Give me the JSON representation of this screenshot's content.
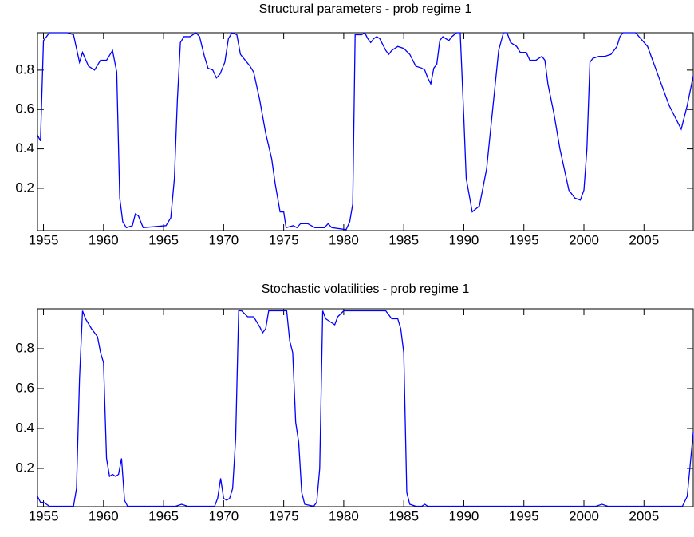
{
  "chart_data": [
    {
      "type": "line",
      "title": "Structural parameters - prob regime 1",
      "x": [
        1954.5,
        1954.75,
        1955,
        1955.5,
        1957,
        1957.5,
        1958,
        1958.25,
        1958.75,
        1959.25,
        1959.75,
        1960.25,
        1960.75,
        1961.1,
        1961.35,
        1961.6,
        1961.9,
        1962.4,
        1962.65,
        1962.9,
        1963.3,
        1965.2,
        1965.6,
        1965.9,
        1966.15,
        1966.4,
        1966.7,
        1967.2,
        1967.7,
        1968,
        1968.4,
        1968.7,
        1969.1,
        1969.4,
        1969.7,
        1970.1,
        1970.4,
        1970.7,
        1971.1,
        1971.4,
        1971.8,
        1972.2,
        1972.5,
        1973,
        1973.5,
        1974,
        1974.3,
        1974.7,
        1975,
        1975.2,
        1975.8,
        1976.1,
        1976.4,
        1977,
        1977.3,
        1977.6,
        1978.4,
        1978.7,
        1979,
        1980.2,
        1980.5,
        1980.75,
        1980.95,
        1981.5,
        1981.75,
        1982,
        1982.25,
        1982.5,
        1982.75,
        1983,
        1983.5,
        1983.75,
        1984,
        1984.5,
        1985,
        1985.5,
        1986,
        1986.5,
        1986.75,
        1987,
        1987.25,
        1987.5,
        1987.75,
        1988,
        1988.25,
        1988.5,
        1988.75,
        1989,
        1989.4,
        1989.7,
        1990,
        1990.2,
        1990.7,
        1991.3,
        1991.9,
        1992.4,
        1992.9,
        1993.3,
        1993.6,
        1993.9,
        1994.4,
        1994.7,
        1995.2,
        1995.5,
        1996,
        1996.5,
        1996.75,
        1997,
        1997.5,
        1998,
        1998.5,
        1998.75,
        1999.25,
        1999.7,
        2000,
        2000.25,
        2000.5,
        2000.75,
        2001.25,
        2001.75,
        2002.25,
        2002.75,
        2003,
        2003.25,
        2004.3,
        2005.3,
        2006.2,
        2007.1,
        2008.1,
        2008.6,
        2009.1
      ],
      "series": [
        {
          "color": "#0000ff",
          "values": [
            0.47,
            0.44,
            0.95,
            0.99,
            0.99,
            0.98,
            0.84,
            0.89,
            0.82,
            0.8,
            0.85,
            0.85,
            0.9,
            0.79,
            0.15,
            0.03,
            0,
            0.01,
            0.07,
            0.06,
            0,
            0.01,
            0.05,
            0.25,
            0.65,
            0.94,
            0.97,
            0.97,
            0.99,
            0.97,
            0.87,
            0.81,
            0.8,
            0.76,
            0.78,
            0.84,
            0.96,
            0.99,
            0.98,
            0.88,
            0.85,
            0.82,
            0.79,
            0.65,
            0.48,
            0.35,
            0.22,
            0.08,
            0.08,
            0,
            0.01,
            0,
            0.02,
            0.02,
            0.01,
            0,
            0,
            0.02,
            0,
            -0.01,
            0.03,
            0.12,
            0.98,
            0.98,
            0.99,
            0.96,
            0.94,
            0.96,
            0.97,
            0.96,
            0.9,
            0.88,
            0.9,
            0.92,
            0.91,
            0.88,
            0.82,
            0.81,
            0.8,
            0.76,
            0.73,
            0.81,
            0.83,
            0.95,
            0.97,
            0.96,
            0.95,
            0.97,
            0.99,
            0.99,
            0.56,
            0.25,
            0.08,
            0.11,
            0.3,
            0.6,
            0.9,
            0.99,
            0.99,
            0.94,
            0.92,
            0.89,
            0.89,
            0.85,
            0.85,
            0.87,
            0.85,
            0.73,
            0.58,
            0.4,
            0.26,
            0.19,
            0.15,
            0.14,
            0.19,
            0.4,
            0.84,
            0.86,
            0.87,
            0.87,
            0.88,
            0.92,
            0.97,
            0.99,
            0.99,
            0.92,
            0.77,
            0.62,
            0.5,
            0.62,
            0.77
          ]
        }
      ],
      "xlim": [
        1954.5,
        2009.1
      ],
      "ylim": [
        -0.015,
        0.99
      ],
      "xticks": [
        1955,
        1960,
        1965,
        1970,
        1975,
        1980,
        1985,
        1990,
        1995,
        2000,
        2005
      ],
      "yticks": [
        0.2,
        0.4,
        0.6,
        0.8
      ]
    },
    {
      "type": "line",
      "title": "Stochastic volatilities - prob regime 1",
      "x": [
        1954.5,
        1954.75,
        1955,
        1955.5,
        1957.5,
        1957.75,
        1958,
        1958.25,
        1958.5,
        1959,
        1959.5,
        1959.75,
        1960,
        1960.25,
        1960.5,
        1960.75,
        1961,
        1961.25,
        1961.5,
        1961.75,
        1962,
        1966,
        1966.5,
        1967,
        1969.25,
        1969.5,
        1969.75,
        1970,
        1970.25,
        1970.5,
        1970.75,
        1971,
        1971.25,
        1971.5,
        1972,
        1972.5,
        1973,
        1973.25,
        1973.5,
        1973.75,
        1975.25,
        1975.5,
        1975.75,
        1976,
        1976.25,
        1976.5,
        1976.75,
        1977.5,
        1977.75,
        1978,
        1978.25,
        1978.5,
        1979,
        1979.25,
        1979.5,
        1980,
        1983.5,
        1984,
        1984.5,
        1984.75,
        1985,
        1985.25,
        1985.5,
        1986,
        1986.5,
        1986.75,
        1987,
        2001,
        2001.5,
        2002,
        2008.2,
        2008.6,
        2009.1
      ],
      "series": [
        {
          "color": "#0000ff",
          "values": [
            0.06,
            0.03,
            0.03,
            0.01,
            0.01,
            0.1,
            0.65,
            0.99,
            0.95,
            0.9,
            0.86,
            0.78,
            0.73,
            0.25,
            0.16,
            0.17,
            0.16,
            0.17,
            0.25,
            0.04,
            0.01,
            0.01,
            0.02,
            0.01,
            0.01,
            0.05,
            0.15,
            0.05,
            0.04,
            0.05,
            0.1,
            0.35,
            0.99,
            0.99,
            0.96,
            0.96,
            0.91,
            0.88,
            0.9,
            0.99,
            0.99,
            0.84,
            0.78,
            0.43,
            0.33,
            0.08,
            0.02,
            0.01,
            0.03,
            0.2,
            0.99,
            0.95,
            0.93,
            0.92,
            0.96,
            0.99,
            0.99,
            0.95,
            0.95,
            0.9,
            0.78,
            0.08,
            0.02,
            0.01,
            0.01,
            0.02,
            0.01,
            0.01,
            0.02,
            0.01,
            0.01,
            0.06,
            0.38
          ]
        }
      ],
      "xlim": [
        1954.5,
        2009.1
      ],
      "ylim": [
        0.008,
        1.0
      ],
      "xticks": [
        1955,
        1960,
        1965,
        1970,
        1975,
        1980,
        1985,
        1990,
        1995,
        2000,
        2005
      ],
      "yticks": [
        0.2,
        0.4,
        0.6,
        0.8
      ]
    }
  ]
}
